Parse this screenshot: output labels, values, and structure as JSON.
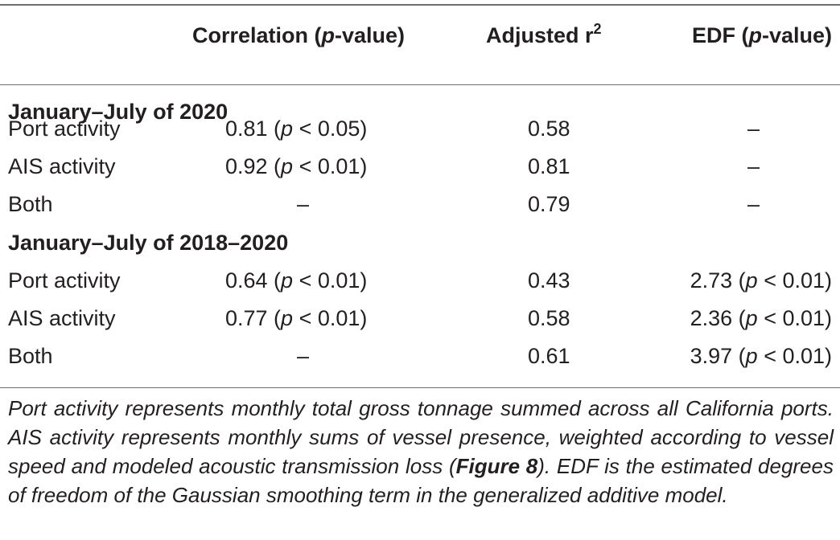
{
  "header": {
    "correlation_label": "Correlation (",
    "p_italic": "p",
    "correlation_suffix": "-value)",
    "adjusted_label": "Adjusted r",
    "adjusted_sup": "2",
    "edf_label": "EDF (",
    "edf_suffix": "-value)"
  },
  "sections": [
    {
      "title": "January–July of 2020",
      "rows": [
        {
          "label": "Port activity",
          "corr_value": "0.81 (",
          "corr_p": "p",
          "corr_cmp": " < 0.05)",
          "adjusted": "0.58",
          "edf": "–"
        },
        {
          "label": "AIS activity",
          "corr_value": "0.92 (",
          "corr_p": "p",
          "corr_cmp": " < 0.01)",
          "adjusted": "0.81",
          "edf": "–"
        },
        {
          "label": "Both",
          "corr_dash": "–",
          "adjusted": "0.79",
          "edf": "–"
        }
      ]
    },
    {
      "title": "January–July of 2018–2020",
      "rows": [
        {
          "label": "Port activity",
          "corr_value": "0.64 (",
          "corr_p": "p",
          "corr_cmp": " < 0.01)",
          "adjusted": "0.43",
          "edf_value": "2.73 (",
          "edf_p": "p",
          "edf_cmp": " < 0.01)"
        },
        {
          "label": "AIS activity",
          "corr_value": "0.77 (",
          "corr_p": "p",
          "corr_cmp": " < 0.01)",
          "adjusted": "0.58",
          "edf_value": "2.36 (",
          "edf_p": "p",
          "edf_cmp": " < 0.01)"
        },
        {
          "label": "Both",
          "corr_dash": "–",
          "adjusted": "0.61",
          "edf_value": "3.97 (",
          "edf_p": "p",
          "edf_cmp": " < 0.01)"
        }
      ]
    }
  ],
  "footnote": {
    "part1": "Port activity represents monthly total gross tonnage summed across all California ports. AIS activity represents monthly sums of vessel presence, weighted according to vessel speed and modeled acoustic transmission loss (",
    "figure_ref": "Figure 8",
    "part2": "). EDF is the estimated degrees of freedom of the Gaussian smoothing term in the generalized additive model."
  }
}
